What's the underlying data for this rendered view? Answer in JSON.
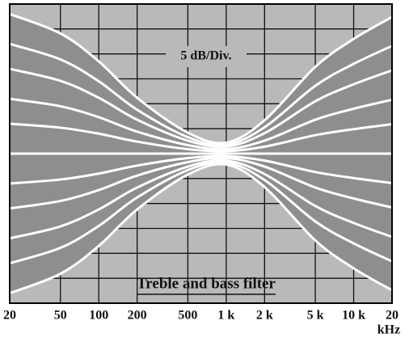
{
  "chart_data": {
    "type": "line",
    "annotations": [
      "5 dB/Div.",
      "Treble and bass filter"
    ],
    "x_unit": "kHz",
    "x": [
      20,
      50,
      100,
      200,
      500,
      1000,
      2000,
      5000,
      10000,
      20000
    ],
    "xscale": "log",
    "xlim": [
      20,
      20000
    ],
    "xticks": [
      20,
      50,
      100,
      200,
      500,
      {
        "value": 1000,
        "label": "1 k"
      },
      {
        "value": 2000,
        "label": "2 k"
      },
      {
        "value": 5000,
        "label": "5 k"
      },
      {
        "value": 10000,
        "label": "10 k"
      },
      {
        "value": 20000,
        "label": "20"
      }
    ],
    "ylim": [
      -30,
      30
    ],
    "yticks": [
      -30,
      -25,
      -20,
      -15,
      -10,
      -5,
      0,
      5,
      10,
      15,
      20,
      25,
      30
    ],
    "grid": true,
    "background": "#b9b9b9",
    "band_color": "#8e8e8e",
    "series": [
      {
        "color": "#ffffff",
        "values": [
          28,
          24.1,
          18.5,
          11.2,
          4.2,
          2.2,
          6.7,
          17.4,
          23,
          27.4
        ]
      },
      {
        "color": "#ffffff",
        "values": [
          22,
          18.9,
          14.5,
          8.8,
          3.3,
          1.8,
          5.3,
          13.6,
          18,
          21.6
        ]
      },
      {
        "color": "#ffffff",
        "values": [
          17,
          14.6,
          11.2,
          6.8,
          2.6,
          1.4,
          4.1,
          10.5,
          13.9,
          16.7
        ]
      },
      {
        "color": "#ffffff",
        "values": [
          11,
          9.5,
          7.3,
          4.4,
          1.7,
          0.9,
          2.6,
          6.8,
          9,
          10.8
        ]
      },
      {
        "color": "#ffffff",
        "values": [
          6,
          5.2,
          4,
          2.4,
          0.9,
          0.5,
          1.4,
          3.7,
          4.9,
          5.9
        ]
      },
      {
        "color": "#ffffff",
        "values": [
          0,
          0,
          0,
          0,
          0,
          0,
          0,
          0,
          0,
          0
        ]
      },
      {
        "color": "#ffffff",
        "values": [
          -6,
          -5.2,
          -4,
          -2.4,
          -0.9,
          -0.5,
          -1.4,
          -3.7,
          -4.9,
          -5.9
        ]
      },
      {
        "color": "#ffffff",
        "values": [
          -11,
          -9.5,
          -7.3,
          -4.4,
          -1.7,
          -0.9,
          -2.6,
          -6.8,
          -9,
          -10.8
        ]
      },
      {
        "color": "#ffffff",
        "values": [
          -17,
          -14.6,
          -11.2,
          -6.8,
          -2.6,
          -1.4,
          -4.1,
          -10.5,
          -13.9,
          -16.7
        ]
      },
      {
        "color": "#ffffff",
        "values": [
          -22,
          -18.9,
          -14.5,
          -8.8,
          -3.3,
          -1.8,
          -5.3,
          -13.6,
          -18,
          -21.6
        ]
      },
      {
        "color": "#ffffff",
        "values": [
          -28,
          -24.1,
          -18.5,
          -11.2,
          -4.2,
          -2.2,
          -6.7,
          -17.4,
          -23,
          -27.4
        ]
      }
    ]
  }
}
